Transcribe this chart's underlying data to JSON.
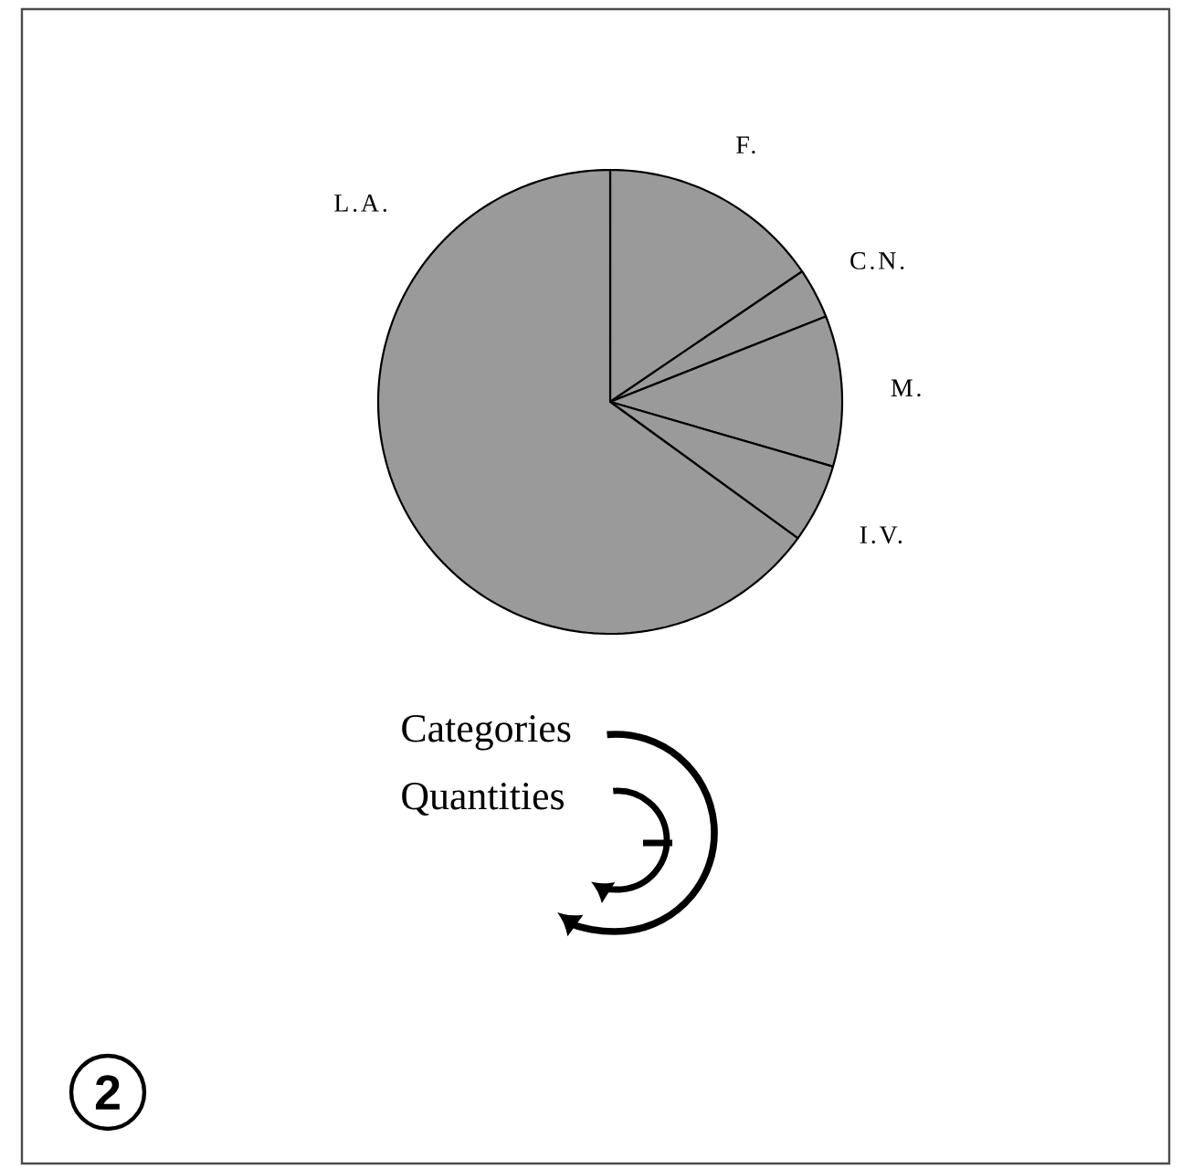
{
  "chart_data": {
    "type": "pie",
    "categories": [
      "F.",
      "C.N.",
      "M.",
      "I.V.",
      "L.A."
    ],
    "values": [
      15.5,
      3.5,
      10.5,
      5.5,
      65
    ],
    "colors": [
      "#9a9a9a",
      "#9a9a9a",
      "#9a9a9a",
      "#9a9a9a",
      "#9a9a9a"
    ],
    "annotations": [
      "Categories",
      "Quantities",
      "2"
    ]
  }
}
